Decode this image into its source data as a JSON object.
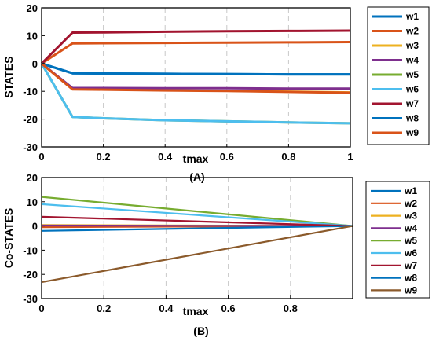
{
  "chart_data": [
    {
      "type": "line",
      "caption": "(A)",
      "xlabel": "tmax",
      "ylabel": "STATES",
      "xlim": [
        0,
        1
      ],
      "ylim": [
        -30,
        20
      ],
      "xticks": [
        "0",
        "0.2",
        "0.4",
        "0.6",
        "0.8",
        "1"
      ],
      "yticks": [
        "20",
        "10",
        "0",
        "-10",
        "-20",
        "-30"
      ],
      "grid": "vertical dashed",
      "legend_position": "right",
      "x": [
        0,
        0.1,
        0.2,
        0.4,
        0.6,
        0.8,
        1.0
      ],
      "series": [
        {
          "name": "w1",
          "color": "#0072BD",
          "values": [
            0,
            -3.5,
            -3.6,
            -3.7,
            -3.8,
            -3.9,
            -3.9
          ]
        },
        {
          "name": "w2",
          "color": "#D95319",
          "values": [
            0,
            7.2,
            7.3,
            7.4,
            7.5,
            7.6,
            7.7
          ]
        },
        {
          "name": "w3",
          "color": "#EDB120",
          "values": [
            0,
            -9.2,
            -9.3,
            -9.6,
            -9.8,
            -10.1,
            -10.4
          ]
        },
        {
          "name": "w4",
          "color": "#7E2F8E",
          "values": [
            0,
            -8.8,
            -8.8,
            -8.9,
            -8.9,
            -9.0,
            -9.0
          ]
        },
        {
          "name": "w5",
          "color": "#77AC30",
          "values": [
            0,
            -19.2,
            -19.7,
            -20.4,
            -20.8,
            -21.2,
            -21.5
          ]
        },
        {
          "name": "w6",
          "color": "#4DBEEE",
          "values": [
            0,
            -19.2,
            -19.7,
            -20.4,
            -20.8,
            -21.2,
            -21.5
          ]
        },
        {
          "name": "w7",
          "color": "#A2142F",
          "values": [
            0,
            11.1,
            11.2,
            11.4,
            11.6,
            11.7,
            11.8
          ]
        },
        {
          "name": "w8",
          "color": "#0072BD",
          "values": [
            0,
            -3.5,
            -3.6,
            -3.7,
            -3.8,
            -3.9,
            -3.9
          ]
        },
        {
          "name": "w9",
          "color": "#D95319",
          "values": [
            0,
            -9.3,
            -9.4,
            -9.7,
            -9.9,
            -10.2,
            -10.5
          ]
        }
      ]
    },
    {
      "type": "line",
      "caption": "(B)",
      "xlabel": "tmax",
      "ylabel": "Co-STATES",
      "xlim": [
        0,
        1
      ],
      "ylim": [
        -30,
        20
      ],
      "xticks": [
        "0",
        "0.2",
        "0.4",
        "0.6",
        "0.8"
      ],
      "yticks": [
        "20",
        "10",
        "0",
        "-10",
        "-20",
        "-30"
      ],
      "grid": "vertical dashed",
      "legend_position": "right",
      "x": [
        0,
        1
      ],
      "series": [
        {
          "name": "w1",
          "color": "#0072BD",
          "values": [
            -0.3,
            0
          ]
        },
        {
          "name": "w2",
          "color": "#D95319",
          "values": [
            -0.5,
            0
          ]
        },
        {
          "name": "w3",
          "color": "#EDB120",
          "values": [
            0.4,
            0
          ]
        },
        {
          "name": "w4",
          "color": "#7E2F8E",
          "values": [
            0.2,
            0
          ]
        },
        {
          "name": "w5",
          "color": "#77AC30",
          "values": [
            12.0,
            0
          ]
        },
        {
          "name": "w6",
          "color": "#4DBEEE",
          "values": [
            9.0,
            0
          ]
        },
        {
          "name": "w7",
          "color": "#A2142F",
          "values": [
            3.8,
            0
          ]
        },
        {
          "name": "w8",
          "color": "#0072BD",
          "values": [
            -2.0,
            0
          ]
        },
        {
          "name": "w9",
          "color": "#8B5A2B",
          "values": [
            -23.2,
            0
          ]
        }
      ]
    }
  ]
}
